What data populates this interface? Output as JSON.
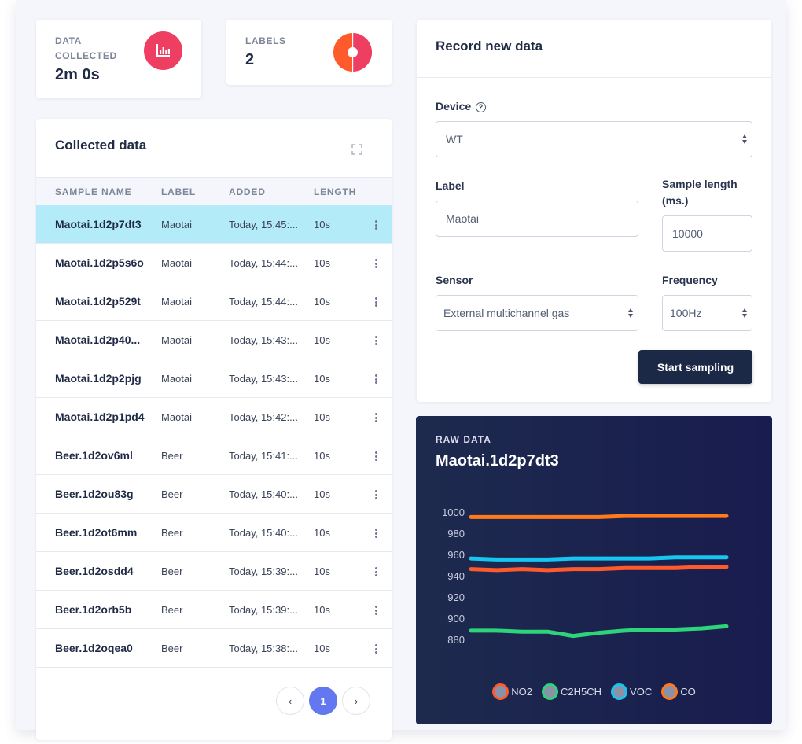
{
  "stats": [
    {
      "label": "DATA COLLECTED",
      "value": "2m 0s",
      "icon": "bar-chart-icon",
      "color": "#ee3e62"
    },
    {
      "label": "LABELS",
      "value": "2",
      "icon": "pie-chart-icon",
      "color": "#ff5a2c"
    }
  ],
  "collected": {
    "title": "Collected data",
    "columns": [
      "SAMPLE NAME",
      "LABEL",
      "ADDED",
      "LENGTH"
    ],
    "rows": [
      {
        "name": "Maotai.1d2p7dt3",
        "label": "Maotai",
        "added": "Today, 15:45:...",
        "length": "10s"
      },
      {
        "name": "Maotai.1d2p5s6o",
        "label": "Maotai",
        "added": "Today, 15:44:...",
        "length": "10s"
      },
      {
        "name": "Maotai.1d2p529t",
        "label": "Maotai",
        "added": "Today, 15:44:...",
        "length": "10s"
      },
      {
        "name": "Maotai.1d2p40...",
        "label": "Maotai",
        "added": "Today, 15:43:...",
        "length": "10s"
      },
      {
        "name": "Maotai.1d2p2pjg",
        "label": "Maotai",
        "added": "Today, 15:43:...",
        "length": "10s"
      },
      {
        "name": "Maotai.1d2p1pd4",
        "label": "Maotai",
        "added": "Today, 15:42:...",
        "length": "10s"
      },
      {
        "name": "Beer.1d2ov6ml",
        "label": "Beer",
        "added": "Today, 15:41:...",
        "length": "10s"
      },
      {
        "name": "Beer.1d2ou83g",
        "label": "Beer",
        "added": "Today, 15:40:...",
        "length": "10s"
      },
      {
        "name": "Beer.1d2ot6mm",
        "label": "Beer",
        "added": "Today, 15:40:...",
        "length": "10s"
      },
      {
        "name": "Beer.1d2osdd4",
        "label": "Beer",
        "added": "Today, 15:39:...",
        "length": "10s"
      },
      {
        "name": "Beer.1d2orb5b",
        "label": "Beer",
        "added": "Today, 15:39:...",
        "length": "10s"
      },
      {
        "name": "Beer.1d2oqea0",
        "label": "Beer",
        "added": "Today, 15:38:...",
        "length": "10s"
      }
    ],
    "selected_index": 0,
    "pagination": {
      "prev": "‹",
      "current": "1",
      "next": "›"
    }
  },
  "record": {
    "title": "Record new data",
    "device_label": "Device",
    "device_value": "WT",
    "label_label": "Label",
    "label_value": "Maotai",
    "sample_length_label": "Sample length (ms.)",
    "sample_length_value": "10000",
    "sensor_label": "Sensor",
    "sensor_value": "External multichannel gas",
    "frequency_label": "Frequency",
    "frequency_value": "100Hz",
    "start_button": "Start sampling"
  },
  "raw_data": {
    "label": "RAW DATA",
    "sample_name": "Maotai.1d2p7dt3"
  },
  "chart_data": {
    "type": "line",
    "x": [
      0,
      1,
      2,
      3,
      4,
      5,
      6,
      7,
      8,
      9,
      10
    ],
    "ylim": [
      870,
      1005
    ],
    "yticks": [
      1000,
      980,
      960,
      940,
      920,
      900,
      880
    ],
    "series": [
      {
        "name": "NO2",
        "color": "#ff5a2c",
        "values": [
          947,
          946,
          947,
          946,
          947,
          947,
          948,
          948,
          948,
          949,
          949
        ]
      },
      {
        "name": "C2H5CH",
        "color": "#2ed47a",
        "values": [
          889,
          889,
          888,
          888,
          884,
          887,
          889,
          890,
          890,
          891,
          893
        ]
      },
      {
        "name": "VOC",
        "color": "#16c6f0",
        "values": [
          957,
          956,
          956,
          956,
          957,
          957,
          957,
          957,
          958,
          958,
          958
        ]
      },
      {
        "name": "CO",
        "color": "#ff7a1a",
        "values": [
          996,
          996,
          996,
          996,
          996,
          996,
          997,
          997,
          997,
          997,
          997
        ]
      }
    ]
  }
}
